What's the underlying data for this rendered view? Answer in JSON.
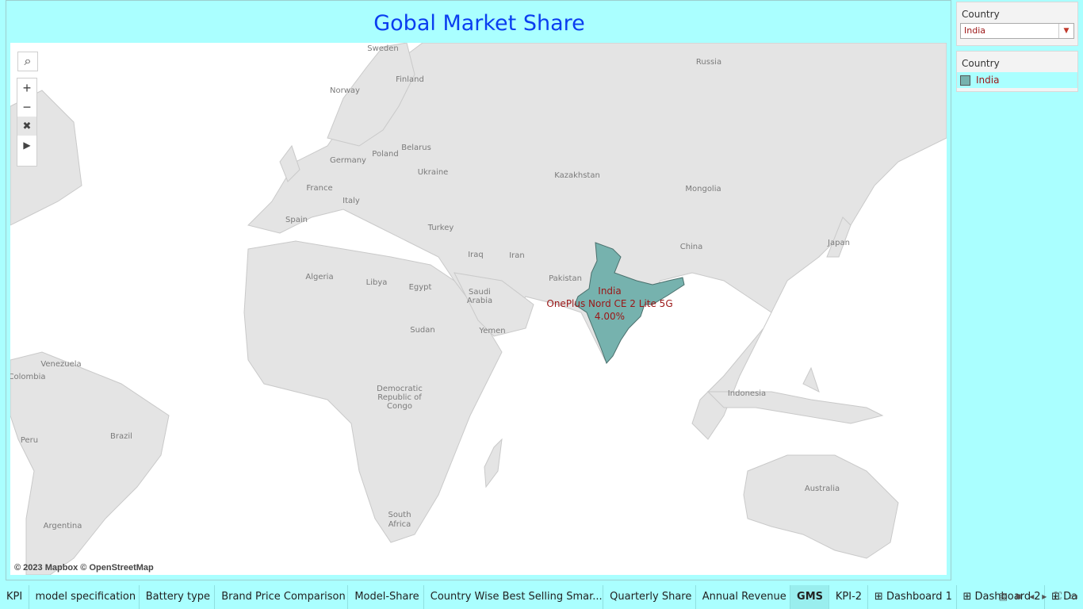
{
  "dashboard": {
    "title": "Gobal Market Share"
  },
  "map": {
    "attribution": "© 2023 Mapbox © OpenStreetMap",
    "highlight_color": "#76b2ae",
    "selected": {
      "country": "India",
      "model": "OnePlus Nord CE 2 Lite 5G",
      "share": "4.00%"
    },
    "place_labels": {
      "sweden": "Sweden",
      "finland": "Finland",
      "russia": "Russia",
      "norway": "Norway",
      "belarus": "Belarus",
      "poland": "Poland",
      "germany": "Germany",
      "ukraine": "Ukraine",
      "france": "France",
      "italy": "Italy",
      "kazakhstan": "Kazakhstan",
      "mongolia": "Mongolia",
      "spain": "Spain",
      "turkey": "Turkey",
      "japan": "Japan",
      "iraq": "Iraq",
      "iran": "Iran",
      "china": "China",
      "algeria": "Algeria",
      "libya": "Libya",
      "egypt": "Egypt",
      "pakistan": "Pakistan",
      "saudi_arabia": "Saudi Arabia",
      "sudan": "Sudan",
      "yemen": "Yemen",
      "venezuela": "Venezuela",
      "colombia": "Colombia",
      "indonesia": "Indonesia",
      "dr_congo": "Democratic Republic of Congo",
      "brazil": "Brazil",
      "peru": "Peru",
      "australia": "Australia",
      "south_africa": "South Africa",
      "argentina": "Argentina"
    }
  },
  "filter": {
    "header": "Country",
    "value": "India"
  },
  "legend": {
    "header": "Country",
    "items": [
      {
        "label": "India"
      }
    ]
  },
  "tabs": [
    {
      "label": "KPI"
    },
    {
      "label": "model specification"
    },
    {
      "label": "Battery type"
    },
    {
      "label": "Brand Price Comparison"
    },
    {
      "label": "Model-Share"
    },
    {
      "label": "Country Wise Best Selling Smar..."
    },
    {
      "label": "Quarterly Share"
    },
    {
      "label": "Annual Revenue"
    },
    {
      "label": "GMS",
      "active": true
    },
    {
      "label": "KPI-2"
    },
    {
      "label": "Dashboard 1"
    },
    {
      "label": "Dashboard 2"
    },
    {
      "label": "Da"
    }
  ]
}
